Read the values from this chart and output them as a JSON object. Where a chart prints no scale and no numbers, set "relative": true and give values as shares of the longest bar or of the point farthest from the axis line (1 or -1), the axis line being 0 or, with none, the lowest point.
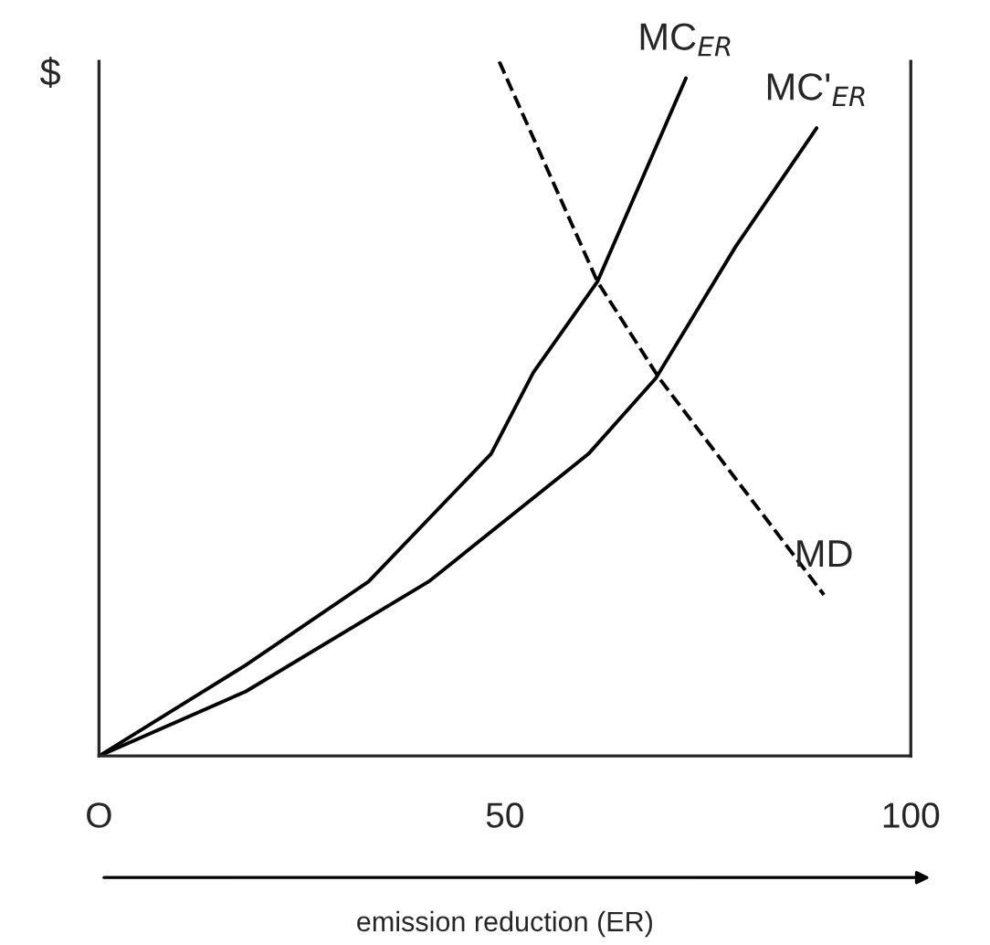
{
  "chart_data": {
    "type": "line",
    "relative": true,
    "ylabel": "$",
    "xlabel": "emission reduction (ER)",
    "xlim": [
      0,
      100
    ],
    "xticks": [
      {
        "value": 0,
        "label": "O"
      },
      50,
      100
    ],
    "tick_labels": "x",
    "grid": false,
    "legend": false,
    "series": [
      {
        "name": "MD",
        "color": "#000000",
        "line_style": "dashed",
        "x": [
          49.3,
          61.4,
          69.0,
          89.3
        ],
        "values": [
          1.0,
          0.683,
          0.544,
          0.232
        ]
      },
      {
        "name": "MC$_{ER}$",
        "color": "#000000",
        "line_style": "solid",
        "x": [
          0,
          18.1,
          33.2,
          48.3,
          53.5,
          61.4,
          72.3
        ],
        "values": [
          0,
          0.131,
          0.251,
          0.435,
          0.552,
          0.683,
          0.976
        ]
      },
      {
        "name": "MC'$_{ER}$",
        "color": "#000000",
        "line_style": "solid",
        "x": [
          0,
          18.1,
          40.6,
          60.3,
          68.6,
          78.4,
          88.4
        ],
        "values": [
          0,
          0.093,
          0.251,
          0.435,
          0.544,
          0.733,
          0.904
        ]
      }
    ]
  }
}
